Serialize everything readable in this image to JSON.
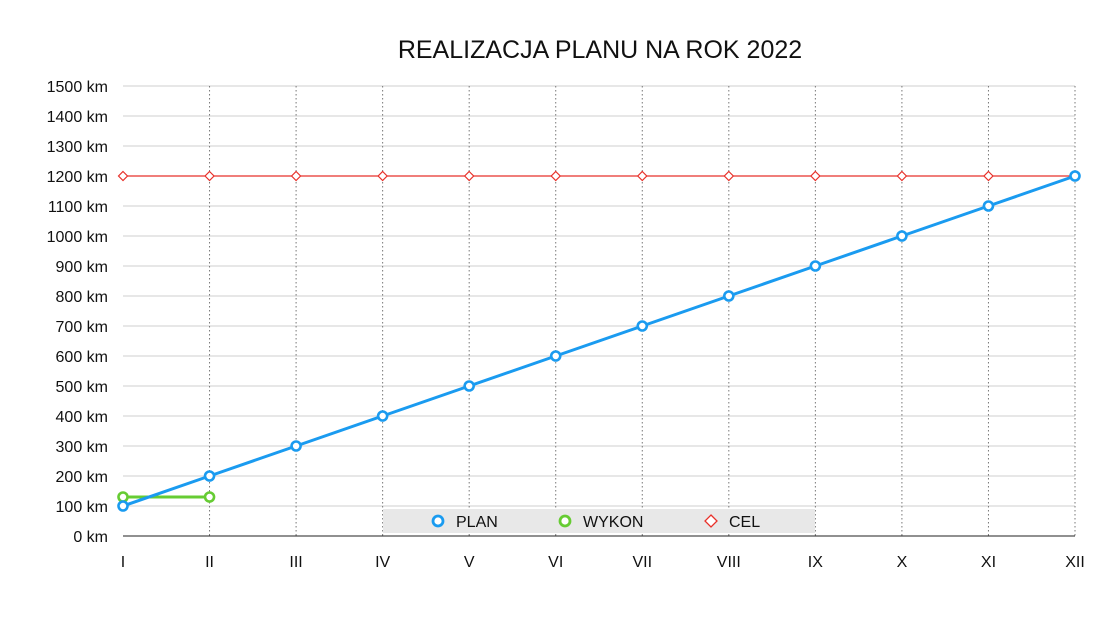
{
  "chart_data": {
    "type": "line",
    "title": "REALIZACJA PLANU NA ROK 2022",
    "xlabel": "",
    "ylabel": "",
    "categories": [
      "I",
      "II",
      "III",
      "IV",
      "V",
      "VI",
      "VII",
      "VIII",
      "IX",
      "X",
      "XI",
      "XII"
    ],
    "ylim": [
      0,
      1500
    ],
    "y_ticks": [
      "0 km",
      "100 km",
      "200 km",
      "300 km",
      "400 km",
      "500 km",
      "600 km",
      "700 km",
      "800 km",
      "900 km",
      "1000 km",
      "1100 km",
      "1200 km",
      "1300 km",
      "1400 km",
      "1500 km"
    ],
    "grid": "horizontal solid, vertical dotted",
    "legend_position": "bottom-center",
    "series": [
      {
        "name": "PLAN",
        "color": "#1a9bf0",
        "marker": "circle",
        "values": [
          100,
          200,
          300,
          400,
          500,
          600,
          700,
          800,
          900,
          1000,
          1100,
          1200
        ]
      },
      {
        "name": "WYKON",
        "color": "#66cc33",
        "marker": "circle",
        "values": [
          130,
          130,
          null,
          null,
          null,
          null,
          null,
          null,
          null,
          null,
          null,
          null
        ]
      },
      {
        "name": "CEL",
        "color": "#e8312a",
        "marker": "diamond",
        "values": [
          1200,
          1200,
          1200,
          1200,
          1200,
          1200,
          1200,
          1200,
          1200,
          1200,
          1200,
          1200
        ]
      }
    ]
  }
}
